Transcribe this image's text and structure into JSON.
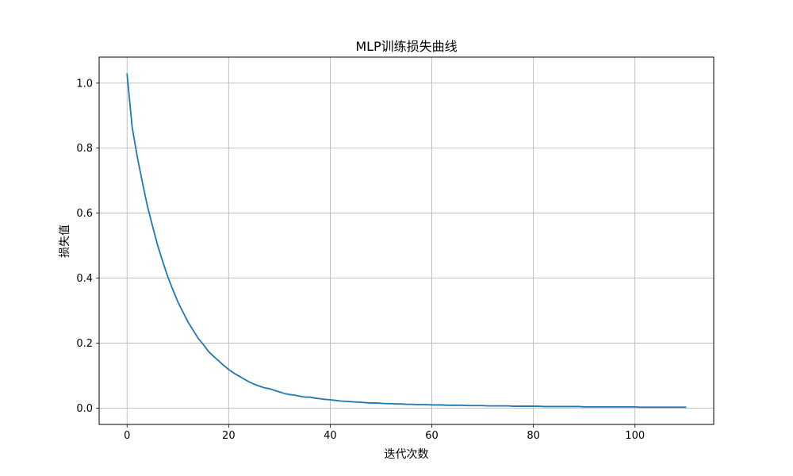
{
  "chart_data": {
    "type": "line",
    "title": "MLP训练损失曲线",
    "xlabel": "迭代次数",
    "ylabel": "损失值",
    "xlim": [
      -5.5,
      115.5
    ],
    "ylim": [
      -0.05,
      1.08
    ],
    "xticks": [
      0,
      20,
      40,
      60,
      80,
      100
    ],
    "xtick_labels": [
      "0",
      "20",
      "40",
      "60",
      "80",
      "100"
    ],
    "yticks": [
      0.0,
      0.2,
      0.4,
      0.6,
      0.8,
      1.0
    ],
    "ytick_labels": [
      "0.0",
      "0.2",
      "0.4",
      "0.6",
      "0.8",
      "1.0"
    ],
    "grid": true,
    "series": [
      {
        "color": "#1f77b4",
        "x": [
          0,
          1,
          2,
          3,
          4,
          5,
          6,
          7,
          8,
          9,
          10,
          11,
          12,
          13,
          14,
          15,
          16,
          17,
          18,
          19,
          20,
          21,
          22,
          23,
          24,
          25,
          26,
          27,
          28,
          29,
          30,
          31,
          32,
          33,
          34,
          35,
          36,
          37,
          38,
          39,
          40,
          41,
          42,
          43,
          44,
          45,
          46,
          47,
          48,
          49,
          50,
          51,
          52,
          53,
          54,
          55,
          56,
          57,
          58,
          59,
          60,
          61,
          62,
          63,
          64,
          65,
          66,
          67,
          68,
          69,
          70,
          71,
          72,
          73,
          74,
          75,
          76,
          77,
          78,
          79,
          80,
          81,
          82,
          83,
          84,
          85,
          86,
          87,
          88,
          89,
          90,
          91,
          92,
          93,
          94,
          95,
          96,
          97,
          98,
          99,
          100,
          101,
          102,
          103,
          104,
          105,
          106,
          107,
          108,
          109,
          110
        ],
        "y": [
          1.028,
          0.865,
          0.774,
          0.696,
          0.622,
          0.561,
          0.502,
          0.452,
          0.405,
          0.365,
          0.327,
          0.296,
          0.265,
          0.24,
          0.215,
          0.196,
          0.175,
          0.16,
          0.146,
          0.132,
          0.119,
          0.108,
          0.099,
          0.09,
          0.081,
          0.074,
          0.068,
          0.063,
          0.06,
          0.055,
          0.05,
          0.045,
          0.042,
          0.04,
          0.037,
          0.034,
          0.034,
          0.031,
          0.029,
          0.027,
          0.026,
          0.024,
          0.022,
          0.021,
          0.02,
          0.019,
          0.018,
          0.017,
          0.016,
          0.016,
          0.015,
          0.014,
          0.014,
          0.013,
          0.013,
          0.012,
          0.012,
          0.011,
          0.011,
          0.011,
          0.01,
          0.01,
          0.01,
          0.009,
          0.009,
          0.009,
          0.009,
          0.008,
          0.008,
          0.008,
          0.008,
          0.007,
          0.007,
          0.007,
          0.007,
          0.007,
          0.006,
          0.006,
          0.006,
          0.006,
          0.006,
          0.006,
          0.005,
          0.005,
          0.005,
          0.005,
          0.005,
          0.005,
          0.005,
          0.005,
          0.004,
          0.004,
          0.004,
          0.004,
          0.004,
          0.004,
          0.004,
          0.004,
          0.004,
          0.004,
          0.004,
          0.003,
          0.003,
          0.003,
          0.003,
          0.003,
          0.003,
          0.003,
          0.003,
          0.003,
          0.003
        ]
      }
    ]
  }
}
